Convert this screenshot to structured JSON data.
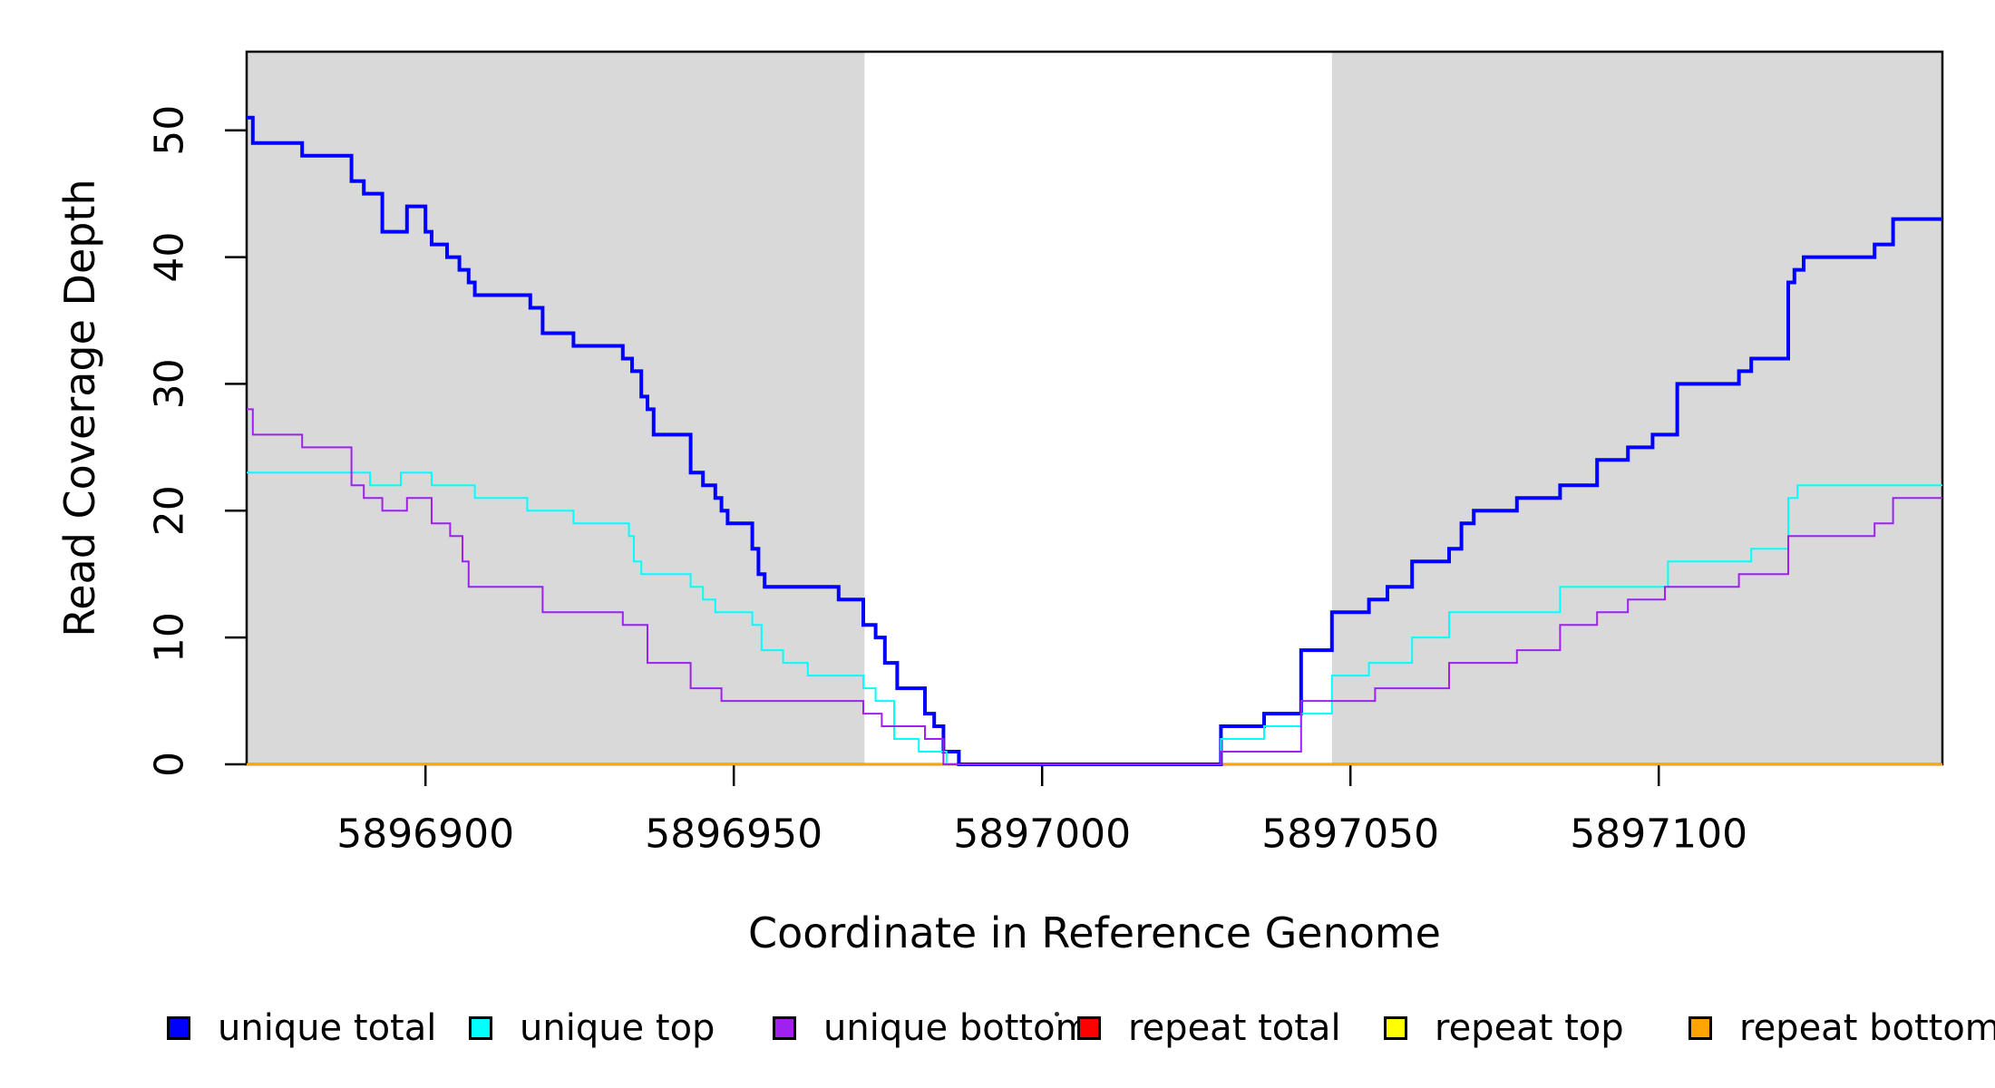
{
  "figure": {
    "x_axis_title": "Coordinate in Reference Genome",
    "y_axis_title": "Read Coverage Depth"
  },
  "legend": {
    "items": [
      {
        "label": "unique total",
        "color": "#0000FF"
      },
      {
        "label": "unique top",
        "color": "#00FFFF"
      },
      {
        "label": "unique bottom",
        "color": "#A020F0"
      },
      {
        "label": "repeat total",
        "color": "#FF0000"
      },
      {
        "label": "repeat top",
        "color": "#FFFF00"
      },
      {
        "label": "repeat bottom",
        "color": "#FFA500"
      }
    ]
  },
  "chart_data": {
    "type": "step-line",
    "title": "",
    "xlabel": "Coordinate in Reference Genome",
    "ylabel": "Read Coverage Depth",
    "xlim": [
      5896871,
      5897146
    ],
    "ylim": [
      0,
      56.2
    ],
    "x_ticks": [
      5896900,
      5896950,
      5897000,
      5897050,
      5897100
    ],
    "y_ticks": [
      0,
      10,
      20,
      30,
      40,
      50
    ],
    "grid": false,
    "legend_position": "bottom",
    "background_bands": {
      "color": "#D9D9D9",
      "regions": [
        [
          5896871,
          5896971.2
        ],
        [
          5897047,
          5897146
        ]
      ]
    },
    "draw_order": [
      "repeat total",
      "repeat top",
      "repeat bottom",
      "unique total",
      "unique top",
      "unique bottom"
    ],
    "series": [
      {
        "name": "unique total",
        "color": "#0000FF",
        "line_width": 4,
        "points": [
          [
            5896871,
            51
          ],
          [
            5896872,
            49
          ],
          [
            5896880,
            48
          ],
          [
            5896888,
            46
          ],
          [
            5896890,
            45
          ],
          [
            5896893,
            42
          ],
          [
            5896897,
            44
          ],
          [
            5896900,
            42
          ],
          [
            5896901,
            41
          ],
          [
            5896903.5,
            40
          ],
          [
            5896905.5,
            39
          ],
          [
            5896907,
            38
          ],
          [
            5896908,
            37
          ],
          [
            5896917,
            36
          ],
          [
            5896919,
            34
          ],
          [
            5896924,
            33
          ],
          [
            5896932,
            32
          ],
          [
            5896933.5,
            31
          ],
          [
            5896935,
            29
          ],
          [
            5896936,
            28
          ],
          [
            5896937,
            26
          ],
          [
            5896943,
            23
          ],
          [
            5896945,
            22
          ],
          [
            5896947,
            21
          ],
          [
            5896948,
            20
          ],
          [
            5896949,
            19
          ],
          [
            5896953,
            17
          ],
          [
            5896954,
            15
          ],
          [
            5896955,
            14
          ],
          [
            5896967,
            13
          ],
          [
            5896971,
            11
          ],
          [
            5896973,
            10
          ],
          [
            5896974.5,
            8
          ],
          [
            5896976.5,
            6
          ],
          [
            5896981,
            4
          ],
          [
            5896982.5,
            3
          ],
          [
            5896984,
            1
          ],
          [
            5896986.5,
            0
          ],
          [
            5897029,
            3
          ],
          [
            5897036,
            4
          ],
          [
            5897042,
            9
          ],
          [
            5897047,
            12
          ],
          [
            5897053,
            13
          ],
          [
            5897056,
            14
          ],
          [
            5897060,
            16
          ],
          [
            5897066,
            17
          ],
          [
            5897068,
            19
          ],
          [
            5897070,
            20
          ],
          [
            5897077,
            21
          ],
          [
            5897084,
            22
          ],
          [
            5897090,
            24
          ],
          [
            5897095,
            25
          ],
          [
            5897099,
            26
          ],
          [
            5897103,
            30
          ],
          [
            5897113,
            31
          ],
          [
            5897115,
            32
          ],
          [
            5897121,
            38
          ],
          [
            5897122,
            39
          ],
          [
            5897123.5,
            40
          ],
          [
            5897135,
            41
          ],
          [
            5897138,
            43
          ]
        ]
      },
      {
        "name": "unique top",
        "color": "#00FFFF",
        "line_width": 2,
        "points": [
          [
            5896871,
            23
          ],
          [
            5896891,
            22
          ],
          [
            5896896,
            23
          ],
          [
            5896901,
            22
          ],
          [
            5896908,
            21
          ],
          [
            5896916.5,
            20
          ],
          [
            5896924,
            19
          ],
          [
            5896933,
            18
          ],
          [
            5896933.8,
            16
          ],
          [
            5896935,
            15
          ],
          [
            5896943,
            14
          ],
          [
            5896945,
            13
          ],
          [
            5896947,
            12
          ],
          [
            5896953,
            11
          ],
          [
            5896954.5,
            9
          ],
          [
            5896958,
            8
          ],
          [
            5896962,
            7
          ],
          [
            5896971,
            6
          ],
          [
            5896973,
            5
          ],
          [
            5896976,
            2
          ],
          [
            5896980,
            1
          ],
          [
            5896984.5,
            0
          ],
          [
            5897029,
            2
          ],
          [
            5897036,
            3
          ],
          [
            5897042,
            4
          ],
          [
            5897047,
            7
          ],
          [
            5897053,
            8
          ],
          [
            5897060,
            10
          ],
          [
            5897066,
            12
          ],
          [
            5897084,
            14
          ],
          [
            5897101.5,
            16
          ],
          [
            5897115,
            17
          ],
          [
            5897121,
            21
          ],
          [
            5897122.5,
            22
          ]
        ]
      },
      {
        "name": "unique bottom",
        "color": "#A020F0",
        "line_width": 2,
        "points": [
          [
            5896871,
            28
          ],
          [
            5896872,
            26
          ],
          [
            5896880,
            25
          ],
          [
            5896888,
            22
          ],
          [
            5896890,
            21
          ],
          [
            5896893,
            20
          ],
          [
            5896897,
            21
          ],
          [
            5896901,
            19
          ],
          [
            5896904,
            18
          ],
          [
            5896906,
            16
          ],
          [
            5896907,
            14
          ],
          [
            5896919,
            12
          ],
          [
            5896932,
            11
          ],
          [
            5896936,
            8
          ],
          [
            5896943,
            6
          ],
          [
            5896948,
            5
          ],
          [
            5896971,
            4
          ],
          [
            5896974,
            3
          ],
          [
            5896981,
            2
          ],
          [
            5896984,
            0
          ],
          [
            5897029,
            1
          ],
          [
            5897042,
            5
          ],
          [
            5897054,
            6
          ],
          [
            5897066,
            8
          ],
          [
            5897077,
            9
          ],
          [
            5897084,
            11
          ],
          [
            5897090,
            12
          ],
          [
            5897095,
            13
          ],
          [
            5897101,
            14
          ],
          [
            5897113,
            15
          ],
          [
            5897121,
            18
          ],
          [
            5897135,
            19
          ],
          [
            5897138,
            21
          ]
        ]
      },
      {
        "name": "repeat total",
        "color": "#FF0000",
        "line_width": 2,
        "points": [
          [
            5896871,
            0
          ]
        ]
      },
      {
        "name": "repeat top",
        "color": "#FFFF00",
        "line_width": 2,
        "points": [
          [
            5896871,
            0
          ]
        ]
      },
      {
        "name": "repeat bottom",
        "color": "#FFA500",
        "line_width": 2.5,
        "points": [
          [
            5896871,
            0
          ]
        ]
      }
    ]
  }
}
